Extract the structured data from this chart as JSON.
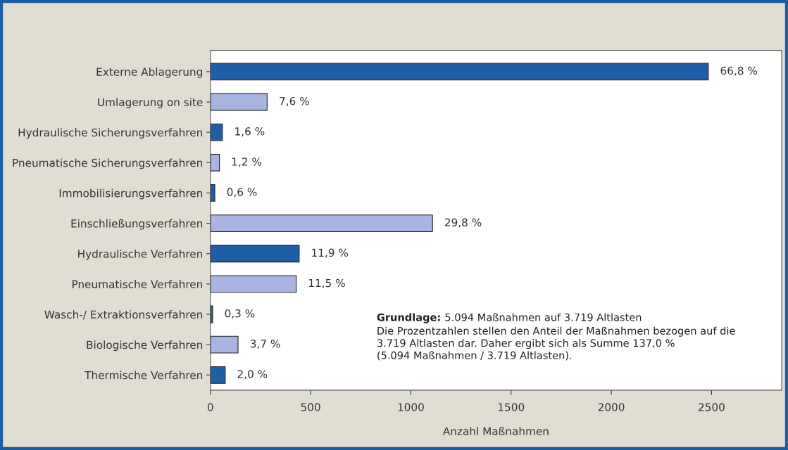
{
  "chart_data": {
    "type": "bar",
    "orientation": "horizontal",
    "xlabel": "Anzahl Maßnahmen",
    "categories": [
      "Externe Ablagerung",
      "Umlagerung on site",
      "Hydraulische Sicherungsverfahren",
      "Pneumatische Sicherungsverfahren",
      "Immobilisierungsverfahren",
      "Einschließungsverfahren",
      "Hydraulische Verfahren",
      "Pneumatische Verfahren",
      "Wasch-/ Extraktionsverfahren",
      "Biologische Verfahren",
      "Thermische Verfahren"
    ],
    "values": [
      2484,
      283,
      60,
      45,
      22,
      1108,
      443,
      428,
      11,
      138,
      74
    ],
    "colors": [
      "#1f5fa8",
      "#a9b4e3",
      "#1f5fa8",
      "#a9b4e3",
      "#1f5fa8",
      "#a9b4e3",
      "#1f5fa8",
      "#a9b4e3",
      "#1f5fa8",
      "#a9b4e3",
      "#1f5fa8"
    ],
    "xlim": [
      0,
      2850
    ],
    "xticks": [
      0,
      500,
      1000,
      1500,
      2000,
      2500
    ],
    "grid": false,
    "annotations": [
      {
        "text": "66,8 %",
        "x": 2484,
        "y": "Externe Ablagerung"
      },
      {
        "text": "7,6 %",
        "x": 283,
        "y": "Umlagerung on site"
      },
      {
        "text": "1,6 %",
        "x": 60,
        "y": "Hydraulische Sicherungsverfahren"
      },
      {
        "text": "1,2 %",
        "x": 45,
        "y": "Pneumatische Sicherungsverfahren"
      },
      {
        "text": "0,6 %",
        "x": 22,
        "y": "Immobilisierungsverfahren"
      },
      {
        "text": "29,8 %",
        "x": 1108,
        "y": "Einschließungsverfahren"
      },
      {
        "text": "11,9 %",
        "x": 443,
        "y": "Hydraulische Verfahren"
      },
      {
        "text": "11,5 %",
        "x": 428,
        "y": "Pneumatische Verfahren"
      },
      {
        "text": "0,3 %",
        "x": 11,
        "y": "Wasch-/ Extraktionsverfahren"
      },
      {
        "text": "3,7 %",
        "x": 138,
        "y": "Biologische Verfahren"
      },
      {
        "text": "2,0 %",
        "x": 74,
        "y": "Thermische Verfahren"
      },
      "Grundlage:",
      "5.094 Maßnahmen auf 3.719 Altlasten",
      "Die Prozentzahlen stellen den Anteil der Maßnahmen bezogen auf die\n3.719 Altlasten dar. Daher ergibt sich als Summe 137,0 %\n(5.094 Maßnahmen / 3.719 Altlasten)."
    ]
  }
}
